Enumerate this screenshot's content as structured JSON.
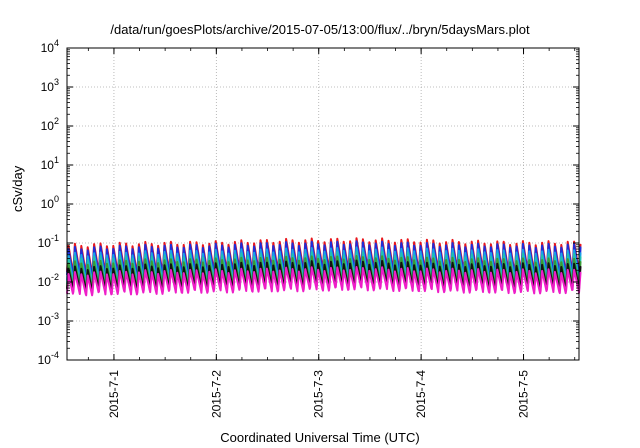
{
  "chart_data": {
    "type": "line",
    "title": "/data/run/goesPlots/archive/2015-07-05/13:00/flux/../bryn/5daysMars.plot",
    "xlabel": "Coordinated Universal Time (UTC)",
    "ylabel": "cSv/day",
    "yscale": "log",
    "ylim": [
      "1e-4",
      "1e4"
    ],
    "y_ticks": [
      {
        "base": "10",
        "exp": "-4"
      },
      {
        "base": "10",
        "exp": "-3"
      },
      {
        "base": "10",
        "exp": "-2"
      },
      {
        "base": "10",
        "exp": "-1"
      },
      {
        "base": "10",
        "exp": "0"
      },
      {
        "base": "10",
        "exp": "1"
      },
      {
        "base": "10",
        "exp": "2"
      },
      {
        "base": "10",
        "exp": "3"
      },
      {
        "base": "10",
        "exp": "4"
      }
    ],
    "x_range": [
      "2015-06-30 13:00",
      "2015-07-05 13:00"
    ],
    "x_ticks": [
      "2015-7-1",
      "2015-7-2",
      "2015-7-3",
      "2015-7-4",
      "2015-7-5"
    ],
    "grid": true,
    "sample_period_minutes": 90,
    "series": [
      {
        "color": "#e8171d",
        "peak": [
          0.085,
          0.095,
          0.1,
          0.115,
          0.12,
          0.11,
          0.1,
          0.1
        ],
        "trough": [
          0.018,
          0.02,
          0.021,
          0.024,
          0.025,
          0.022,
          0.02,
          0.02
        ]
      },
      {
        "color": "#1e2dd8",
        "peak": [
          0.07,
          0.08,
          0.085,
          0.095,
          0.1,
          0.09,
          0.085,
          0.085
        ],
        "trough": [
          0.015,
          0.017,
          0.018,
          0.02,
          0.021,
          0.019,
          0.017,
          0.017
        ]
      },
      {
        "color": "#1aa0e8",
        "peak": [
          0.05,
          0.055,
          0.06,
          0.065,
          0.07,
          0.065,
          0.06,
          0.06
        ],
        "trough": [
          0.011,
          0.012,
          0.013,
          0.014,
          0.015,
          0.014,
          0.013,
          0.013
        ]
      },
      {
        "color": "#20c0b0",
        "peak": [
          0.04,
          0.045,
          0.048,
          0.05,
          0.055,
          0.05,
          0.048,
          0.048
        ],
        "trough": [
          0.009,
          0.01,
          0.011,
          0.012,
          0.012,
          0.011,
          0.01,
          0.01
        ]
      },
      {
        "color": "#3a9b35",
        "peak": [
          0.03,
          0.034,
          0.036,
          0.04,
          0.042,
          0.038,
          0.036,
          0.036
        ],
        "trough": [
          0.007,
          0.008,
          0.0085,
          0.009,
          0.0095,
          0.009,
          0.0085,
          0.0085
        ]
      },
      {
        "color": "#111111",
        "peak": [
          0.022,
          0.025,
          0.027,
          0.03,
          0.032,
          0.028,
          0.027,
          0.027
        ],
        "trough": [
          0.0065,
          0.007,
          0.0075,
          0.008,
          0.0085,
          0.0078,
          0.0072,
          0.0072
        ]
      },
      {
        "color": "#ee1ec8",
        "peak": [
          0.016,
          0.018,
          0.019,
          0.021,
          0.022,
          0.02,
          0.019,
          0.019
        ],
        "trough": [
          0.005,
          0.0055,
          0.006,
          0.0065,
          0.007,
          0.0062,
          0.0058,
          0.0058
        ]
      }
    ]
  }
}
